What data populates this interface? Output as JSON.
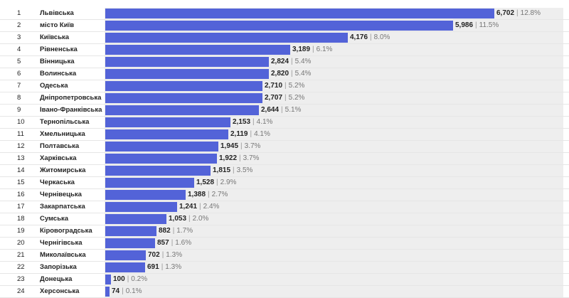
{
  "chart_data": {
    "type": "bar",
    "orientation": "horizontal",
    "bar_color": "#5363d8",
    "track_color": "#eeeeee",
    "xlim": [
      0,
      6702
    ],
    "rows": [
      {
        "rank": "1",
        "name": "Львівська",
        "value": 6702,
        "value_label": "6,702",
        "percent": "12.8%"
      },
      {
        "rank": "2",
        "name": "місто Київ",
        "value": 5986,
        "value_label": "5,986",
        "percent": "11.5%"
      },
      {
        "rank": "3",
        "name": "Київська",
        "value": 4176,
        "value_label": "4,176",
        "percent": "8.0%"
      },
      {
        "rank": "4",
        "name": "Рівненська",
        "value": 3189,
        "value_label": "3,189",
        "percent": "6.1%"
      },
      {
        "rank": "5",
        "name": "Вінницька",
        "value": 2824,
        "value_label": "2,824",
        "percent": "5.4%"
      },
      {
        "rank": "6",
        "name": "Волинська",
        "value": 2820,
        "value_label": "2,820",
        "percent": "5.4%"
      },
      {
        "rank": "7",
        "name": "Одеська",
        "value": 2710,
        "value_label": "2,710",
        "percent": "5.2%"
      },
      {
        "rank": "8",
        "name": "Дніпропетровська",
        "value": 2707,
        "value_label": "2,707",
        "percent": "5.2%"
      },
      {
        "rank": "9",
        "name": "Івано-Франківська",
        "value": 2644,
        "value_label": "2,644",
        "percent": "5.1%"
      },
      {
        "rank": "10",
        "name": "Тернопільська",
        "value": 2153,
        "value_label": "2,153",
        "percent": "4.1%"
      },
      {
        "rank": "11",
        "name": "Хмельницька",
        "value": 2119,
        "value_label": "2,119",
        "percent": "4.1%"
      },
      {
        "rank": "12",
        "name": "Полтавська",
        "value": 1945,
        "value_label": "1,945",
        "percent": "3.7%"
      },
      {
        "rank": "13",
        "name": "Харківська",
        "value": 1922,
        "value_label": "1,922",
        "percent": "3.7%"
      },
      {
        "rank": "14",
        "name": "Житомирська",
        "value": 1815,
        "value_label": "1,815",
        "percent": "3.5%"
      },
      {
        "rank": "15",
        "name": "Черкаська",
        "value": 1528,
        "value_label": "1,528",
        "percent": "2.9%"
      },
      {
        "rank": "16",
        "name": "Чернівецька",
        "value": 1388,
        "value_label": "1,388",
        "percent": "2.7%"
      },
      {
        "rank": "17",
        "name": "Закарпатська",
        "value": 1241,
        "value_label": "1,241",
        "percent": "2.4%"
      },
      {
        "rank": "18",
        "name": "Сумська",
        "value": 1053,
        "value_label": "1,053",
        "percent": "2.0%"
      },
      {
        "rank": "19",
        "name": "Кіровоградська",
        "value": 882,
        "value_label": "882",
        "percent": "1.7%"
      },
      {
        "rank": "20",
        "name": "Чернігівська",
        "value": 857,
        "value_label": "857",
        "percent": "1.6%"
      },
      {
        "rank": "21",
        "name": "Миколаївська",
        "value": 702,
        "value_label": "702",
        "percent": "1.3%"
      },
      {
        "rank": "22",
        "name": "Запорізька",
        "value": 691,
        "value_label": "691",
        "percent": "1.3%"
      },
      {
        "rank": "23",
        "name": "Донецька",
        "value": 100,
        "value_label": "100",
        "percent": "0.2%"
      },
      {
        "rank": "24",
        "name": "Херсонська",
        "value": 74,
        "value_label": "74",
        "percent": "0.1%"
      }
    ]
  }
}
